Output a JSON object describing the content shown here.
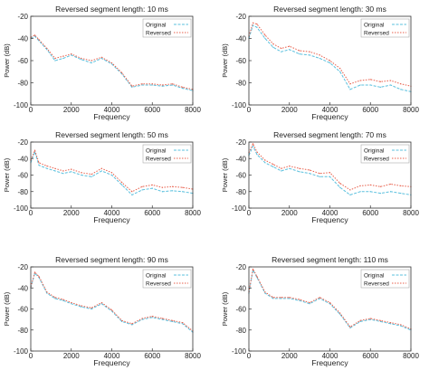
{
  "figure": {
    "colors": {
      "original": "#5bc0de",
      "reversed": "#e8604c",
      "axis": "#333333",
      "background": "#ffffff"
    }
  },
  "chart_data": [
    {
      "type": "line",
      "title": "Reversed segment length: 10 ms",
      "xlabel": "Frequency",
      "ylabel": "Power (dB)",
      "xlim": [
        0,
        8000
      ],
      "ylim": [
        -100,
        -20
      ],
      "xticks": [
        "0",
        "2000",
        "4000",
        "6000",
        "8000"
      ],
      "yticks": [
        "-20",
        "-40",
        "-60",
        "-80",
        "-100"
      ],
      "legend": {
        "position": "top-right",
        "entries": [
          "Original",
          "Reversed"
        ]
      },
      "grid": false,
      "x": [
        0,
        200,
        400,
        800,
        1200,
        1600,
        2000,
        2500,
        3000,
        3500,
        4000,
        4500,
        5000,
        5500,
        6000,
        6500,
        7000,
        7500,
        8000
      ],
      "series": [
        {
          "name": "Original",
          "values": [
            -40,
            -38,
            -42,
            -50,
            -60,
            -58,
            -55,
            -59,
            -62,
            -58,
            -63,
            -72,
            -84,
            -82,
            -82,
            -83,
            -82,
            -85,
            -87
          ]
        },
        {
          "name": "Reversed",
          "values": [
            -39,
            -37,
            -41,
            -49,
            -58,
            -56,
            -54,
            -58,
            -60,
            -57,
            -62,
            -71,
            -83,
            -81,
            -81,
            -82,
            -81,
            -84,
            -86
          ]
        }
      ]
    },
    {
      "type": "line",
      "title": "Reversed segment length: 30 ms",
      "xlabel": "Frequency",
      "ylabel": "Power (dB)",
      "xlim": [
        0,
        8000
      ],
      "ylim": [
        -100,
        -20
      ],
      "xticks": [
        "0",
        "2000",
        "4000",
        "6000",
        "8000"
      ],
      "yticks": [
        "-20",
        "-40",
        "-60",
        "-80",
        "-100"
      ],
      "legend": {
        "position": "top-right",
        "entries": [
          "Original",
          "Reversed"
        ]
      },
      "grid": false,
      "x": [
        0,
        200,
        400,
        800,
        1200,
        1600,
        2000,
        2500,
        3000,
        3500,
        4000,
        4500,
        5000,
        5500,
        6000,
        6500,
        7000,
        7500,
        8000
      ],
      "series": [
        {
          "name": "Original",
          "values": [
            -40,
            -28,
            -30,
            -40,
            -48,
            -52,
            -50,
            -54,
            -55,
            -58,
            -62,
            -70,
            -86,
            -82,
            -82,
            -84,
            -82,
            -86,
            -88
          ]
        },
        {
          "name": "Reversed",
          "values": [
            -38,
            -26,
            -27,
            -37,
            -45,
            -49,
            -47,
            -51,
            -52,
            -55,
            -60,
            -67,
            -81,
            -78,
            -77,
            -79,
            -78,
            -81,
            -83
          ]
        }
      ]
    },
    {
      "type": "line",
      "title": "Reversed segment length: 50 ms",
      "xlabel": "Frequency",
      "ylabel": "Power (dB)",
      "xlim": [
        0,
        8000
      ],
      "ylim": [
        -100,
        -20
      ],
      "xticks": [
        "0",
        "2000",
        "4000",
        "6000",
        "8000"
      ],
      "yticks": [
        "-20",
        "-40",
        "-60",
        "-80",
        "-100"
      ],
      "legend": {
        "position": "top-right",
        "entries": [
          "Original",
          "Reversed"
        ]
      },
      "grid": false,
      "x": [
        0,
        200,
        400,
        800,
        1200,
        1600,
        2000,
        2500,
        3000,
        3500,
        4000,
        4500,
        5000,
        5500,
        6000,
        6500,
        7000,
        7500,
        8000
      ],
      "series": [
        {
          "name": "Original",
          "values": [
            -45,
            -32,
            -48,
            -52,
            -55,
            -58,
            -56,
            -60,
            -62,
            -55,
            -60,
            -72,
            -84,
            -78,
            -76,
            -80,
            -79,
            -80,
            -82
          ]
        },
        {
          "name": "Reversed",
          "values": [
            -42,
            -30,
            -45,
            -49,
            -52,
            -55,
            -53,
            -57,
            -59,
            -52,
            -57,
            -69,
            -80,
            -74,
            -72,
            -75,
            -74,
            -75,
            -77
          ]
        }
      ]
    },
    {
      "type": "line",
      "title": "Reversed segment length: 70 ms",
      "xlabel": "Frequency",
      "ylabel": "Power (dB)",
      "xlim": [
        0,
        8000
      ],
      "ylim": [
        -100,
        -20
      ],
      "xticks": [
        "0",
        "2000",
        "4000",
        "6000",
        "8000"
      ],
      "yticks": [
        "-20",
        "-40",
        "-60",
        "-80",
        "-100"
      ],
      "legend": {
        "position": "top-right",
        "entries": [
          "Original",
          "Reversed"
        ]
      },
      "grid": false,
      "x": [
        0,
        200,
        400,
        800,
        1200,
        1600,
        2000,
        2500,
        3000,
        3500,
        4000,
        4500,
        5000,
        5500,
        6000,
        6500,
        7000,
        7500,
        8000
      ],
      "series": [
        {
          "name": "Original",
          "values": [
            -36,
            -25,
            -35,
            -45,
            -50,
            -55,
            -52,
            -56,
            -58,
            -62,
            -62,
            -75,
            -84,
            -80,
            -80,
            -82,
            -80,
            -82,
            -84
          ]
        },
        {
          "name": "Reversed",
          "values": [
            -33,
            -22,
            -32,
            -42,
            -47,
            -52,
            -49,
            -52,
            -54,
            -58,
            -57,
            -70,
            -78,
            -73,
            -72,
            -74,
            -71,
            -73,
            -74
          ]
        }
      ]
    },
    {
      "type": "line",
      "title": "Reversed segment length: 90 ms",
      "xlabel": "Frequency",
      "ylabel": "Power (dB)",
      "xlim": [
        0,
        8000
      ],
      "ylim": [
        -100,
        -20
      ],
      "xticks": [
        "0",
        "2000",
        "4000",
        "6000",
        "8000"
      ],
      "yticks": [
        "-20",
        "-40",
        "-60",
        "-80",
        "-100"
      ],
      "legend": {
        "position": "top-right",
        "entries": [
          "Original",
          "Reversed"
        ]
      },
      "grid": false,
      "x": [
        0,
        200,
        400,
        800,
        1200,
        1600,
        2000,
        2500,
        3000,
        3500,
        4000,
        4500,
        5000,
        5500,
        6000,
        6500,
        7000,
        7500,
        8000
      ],
      "series": [
        {
          "name": "Original",
          "values": [
            -40,
            -26,
            -30,
            -45,
            -50,
            -52,
            -55,
            -58,
            -60,
            -55,
            -62,
            -72,
            -75,
            -70,
            -68,
            -70,
            -72,
            -74,
            -82
          ]
        },
        {
          "name": "Reversed",
          "values": [
            -39,
            -25,
            -29,
            -44,
            -49,
            -51,
            -54,
            -57,
            -59,
            -54,
            -61,
            -71,
            -74,
            -69,
            -67,
            -69,
            -71,
            -73,
            -81
          ]
        }
      ]
    },
    {
      "type": "line",
      "title": "Reversed segment length: 110 ms",
      "xlabel": "Frequency",
      "ylabel": "Power (dB)",
      "xlim": [
        0,
        8000
      ],
      "ylim": [
        -100,
        -20
      ],
      "xticks": [
        "0",
        "2000",
        "4000",
        "6000",
        "8000"
      ],
      "yticks": [
        "-20",
        "-40",
        "-60",
        "-80",
        "-100"
      ],
      "legend": {
        "position": "top-right",
        "entries": [
          "Original",
          "Reversed"
        ]
      },
      "grid": false,
      "x": [
        0,
        200,
        400,
        800,
        1200,
        1600,
        2000,
        2500,
        3000,
        3500,
        4000,
        4500,
        5000,
        5500,
        6000,
        6500,
        7000,
        7500,
        8000
      ],
      "series": [
        {
          "name": "Original",
          "values": [
            -45,
            -23,
            -30,
            -45,
            -50,
            -50,
            -50,
            -52,
            -55,
            -50,
            -55,
            -65,
            -78,
            -72,
            -70,
            -72,
            -74,
            -76,
            -80
          ]
        },
        {
          "name": "Reversed",
          "values": [
            -44,
            -22,
            -29,
            -44,
            -49,
            -49,
            -49,
            -51,
            -54,
            -49,
            -54,
            -64,
            -77,
            -71,
            -69,
            -71,
            -73,
            -75,
            -79
          ]
        }
      ]
    }
  ]
}
